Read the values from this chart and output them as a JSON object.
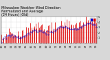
{
  "title": "Milwaukee Weather Wind Direction\nNormalized and Average\n(24 Hours) (Old)",
  "bg_color": "#d8d8d8",
  "plot_bg_color": "#ffffff",
  "grid_color": "#aaaaaa",
  "bar_color": "#dd0000",
  "dot_color": "#0000cc",
  "ylim": [
    0,
    5
  ],
  "ytick_labels": [
    "5",
    "4",
    "3",
    "2",
    "1"
  ],
  "ytick_vals": [
    5,
    4,
    3,
    2,
    1
  ],
  "title_fontsize": 3.5,
  "tick_fontsize": 2.5,
  "legend_fontsize": 2.8,
  "n_bars": 90
}
